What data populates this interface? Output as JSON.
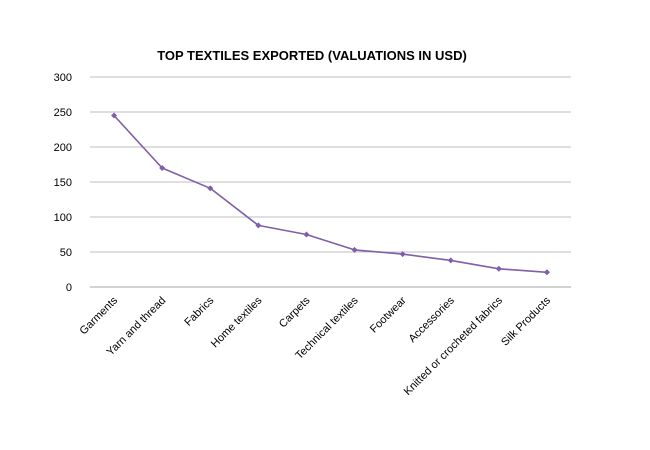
{
  "chart_data": {
    "type": "line",
    "title": "TOP TEXTILES EXPORTED (VALUATIONS IN USD)",
    "xlabel": "",
    "ylabel": "",
    "categories": [
      "Garments",
      "Yarn and thread",
      "Fabrics",
      "Home textiles",
      "Carpets",
      "Technical textiles",
      "Footwear",
      "Accessories",
      "Knitted or crocheted fabrics",
      "Silk Products"
    ],
    "series": [
      {
        "values": [
          245,
          170,
          141,
          88,
          75,
          53,
          47,
          38,
          26,
          21
        ]
      }
    ],
    "ylim": [
      0,
      300
    ],
    "yticks": [
      0,
      50,
      100,
      150,
      200,
      250,
      300
    ],
    "grid": true,
    "legend": "none",
    "colors": {
      "line": "#7f5fa8",
      "marker": "#7f5fa8",
      "grid": "#bfbfbf",
      "axis": "#a6a6a6"
    }
  }
}
